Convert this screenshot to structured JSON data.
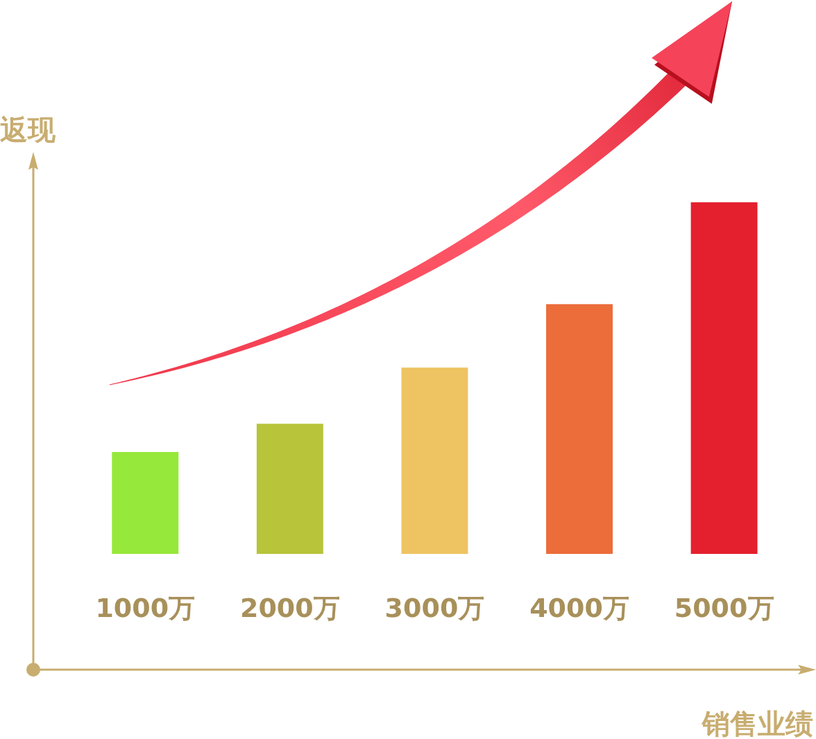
{
  "chart_data": {
    "type": "bar",
    "x_label": "销售业绩",
    "y_label": "返现",
    "categories": [
      "1000万",
      "2000万",
      "3000万",
      "4000万",
      "5000万"
    ],
    "values": [
      29,
      37,
      53,
      71,
      100
    ],
    "colors": [
      "#96e83a",
      "#b8c43a",
      "#eec462",
      "#ec6c3a",
      "#e4202e"
    ],
    "ylim": [
      0,
      110
    ],
    "tick_labels": "x",
    "grid": false
  }
}
